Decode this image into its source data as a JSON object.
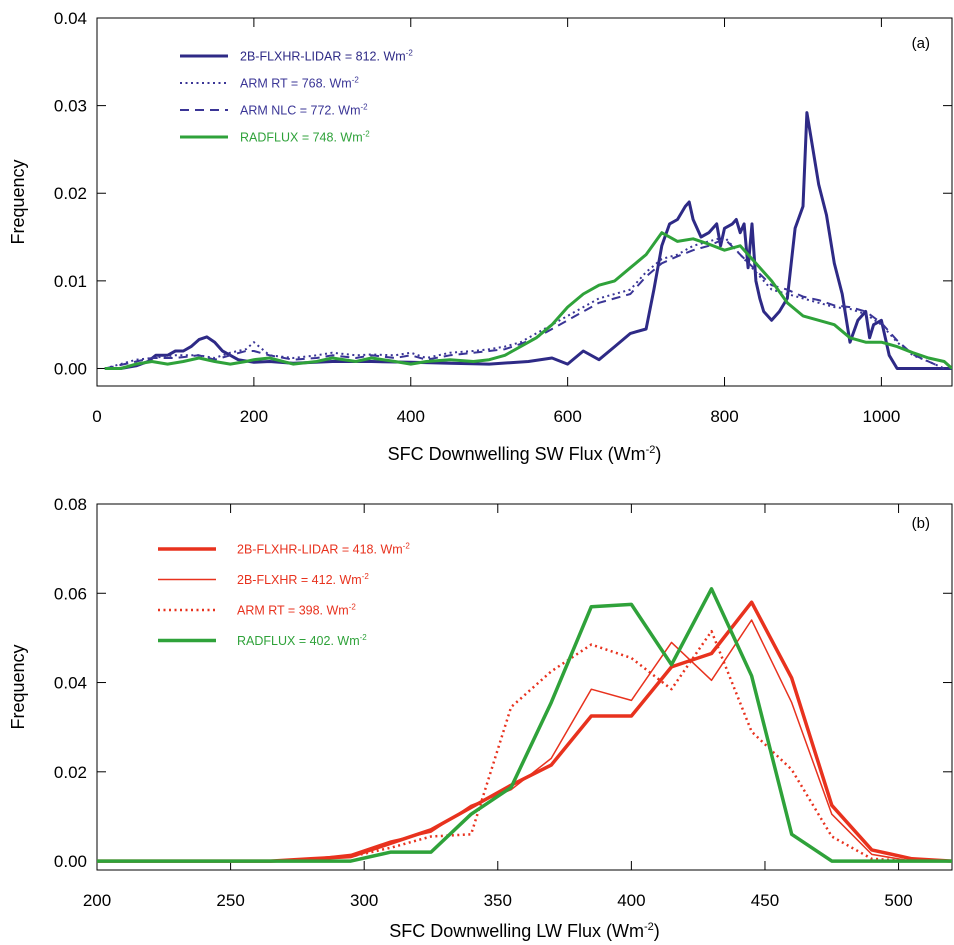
{
  "chart_data": [
    {
      "type": "line",
      "panel_label": "(a)",
      "xlabel": "SFC Downwelling SW Flux (Wm",
      "xlabel_sup": "-2",
      "xlabel_end": ")",
      "ylabel": "Frequency",
      "xlim": [
        0,
        1090
      ],
      "ylim": [
        -0.002,
        0.04
      ],
      "xticks": [
        "0",
        "200",
        "400",
        "600",
        "800",
        "1000"
      ],
      "xtick_values": [
        0,
        200,
        400,
        600,
        800,
        1000
      ],
      "yticks": [
        "0.00",
        "0.01",
        "0.02",
        "0.03",
        "0.04"
      ],
      "ytick_values": [
        0,
        0.01,
        0.02,
        0.03,
        0.04
      ],
      "legend_position": "top-left",
      "series": [
        {
          "name": "2B-FLXHR-LIDAR",
          "legend_value": " = 812. Wm",
          "color": "#2e2a86",
          "style": "solid",
          "width": 3,
          "x": [
            10,
            30,
            50,
            65,
            75,
            90,
            100,
            110,
            120,
            130,
            140,
            150,
            160,
            170,
            180,
            200,
            220,
            250,
            300,
            350,
            400,
            450,
            500,
            550,
            580,
            600,
            620,
            640,
            660,
            680,
            700,
            710,
            720,
            730,
            740,
            750,
            755,
            760,
            770,
            780,
            790,
            795,
            800,
            810,
            815,
            820,
            825,
            830,
            835,
            840,
            845,
            850,
            860,
            870,
            880,
            890,
            900,
            905,
            910,
            920,
            930,
            940,
            950,
            960,
            970,
            980,
            985,
            990,
            1000,
            1010,
            1020,
            1040,
            1090
          ],
          "y": [
            0.0,
            0.0,
            0.0003,
            0.0008,
            0.0015,
            0.0015,
            0.002,
            0.002,
            0.0025,
            0.0033,
            0.0036,
            0.003,
            0.002,
            0.0015,
            0.001,
            0.0007,
            0.0008,
            0.0006,
            0.0008,
            0.0008,
            0.0007,
            0.0006,
            0.0005,
            0.0008,
            0.0012,
            0.0005,
            0.002,
            0.001,
            0.0025,
            0.004,
            0.0045,
            0.009,
            0.014,
            0.0165,
            0.017,
            0.0185,
            0.019,
            0.017,
            0.015,
            0.0155,
            0.0165,
            0.014,
            0.016,
            0.0165,
            0.017,
            0.0155,
            0.0165,
            0.0115,
            0.0165,
            0.01,
            0.008,
            0.0065,
            0.0055,
            0.0065,
            0.008,
            0.016,
            0.0185,
            0.0292,
            0.0265,
            0.021,
            0.0175,
            0.012,
            0.0085,
            0.003,
            0.0055,
            0.0065,
            0.0035,
            0.005,
            0.0055,
            0.0015,
            0.0,
            0.0,
            0.0
          ]
        },
        {
          "name": "ARM RT",
          "legend_value": " = 768. Wm",
          "color": "#3a3596",
          "style": "dotted",
          "width": 2,
          "x": [
            10,
            30,
            50,
            70,
            100,
            130,
            150,
            170,
            190,
            200,
            220,
            250,
            280,
            300,
            330,
            350,
            380,
            400,
            420,
            450,
            480,
            500,
            520,
            540,
            560,
            580,
            600,
            620,
            640,
            660,
            680,
            700,
            720,
            740,
            760,
            780,
            800,
            820,
            840,
            860,
            880,
            900,
            920,
            940,
            960,
            980,
            1000,
            1020,
            1040,
            1060,
            1080
          ],
          "y": [
            0.0,
            0.0005,
            0.001,
            0.0012,
            0.0015,
            0.0015,
            0.0012,
            0.0018,
            0.0022,
            0.003,
            0.0015,
            0.0012,
            0.0015,
            0.0018,
            0.0015,
            0.0016,
            0.0015,
            0.0018,
            0.0012,
            0.0018,
            0.002,
            0.0022,
            0.0025,
            0.003,
            0.004,
            0.005,
            0.006,
            0.007,
            0.008,
            0.0085,
            0.009,
            0.011,
            0.0125,
            0.013,
            0.014,
            0.0145,
            0.015,
            0.013,
            0.011,
            0.009,
            0.0085,
            0.008,
            0.0075,
            0.007,
            0.0068,
            0.0062,
            0.005,
            0.003,
            0.0015,
            0.0008,
            0.0
          ]
        },
        {
          "name": "ARM NLC",
          "legend_value": " = 772. Wm",
          "color": "#3a3596",
          "style": "dashed",
          "width": 2,
          "x": [
            10,
            30,
            50,
            70,
            100,
            130,
            150,
            170,
            190,
            200,
            220,
            250,
            280,
            300,
            330,
            350,
            380,
            400,
            420,
            450,
            480,
            500,
            520,
            540,
            560,
            580,
            600,
            620,
            640,
            660,
            680,
            700,
            720,
            740,
            760,
            780,
            800,
            820,
            840,
            860,
            880,
            900,
            920,
            940,
            960,
            980,
            1000,
            1020,
            1040,
            1060,
            1080
          ],
          "y": [
            0.0,
            0.0004,
            0.0008,
            0.0012,
            0.0012,
            0.0015,
            0.001,
            0.0015,
            0.002,
            0.002,
            0.0015,
            0.001,
            0.0012,
            0.0015,
            0.0012,
            0.0015,
            0.0012,
            0.0015,
            0.001,
            0.0015,
            0.0018,
            0.002,
            0.0022,
            0.0028,
            0.0035,
            0.0045,
            0.0055,
            0.0065,
            0.0075,
            0.008,
            0.0085,
            0.0105,
            0.012,
            0.0128,
            0.0135,
            0.014,
            0.0148,
            0.013,
            0.0112,
            0.0095,
            0.009,
            0.0082,
            0.0078,
            0.0072,
            0.007,
            0.0065,
            0.0052,
            0.0032,
            0.0016,
            0.0008,
            0.0
          ]
        },
        {
          "name": "RADFLUX",
          "legend_value": " = 748. Wm",
          "color": "#2fa23a",
          "style": "solid",
          "width": 3,
          "x": [
            10,
            30,
            50,
            70,
            90,
            110,
            130,
            150,
            170,
            190,
            200,
            220,
            250,
            280,
            300,
            330,
            350,
            380,
            400,
            420,
            450,
            480,
            500,
            520,
            540,
            560,
            580,
            600,
            620,
            640,
            660,
            680,
            700,
            720,
            740,
            760,
            780,
            800,
            820,
            840,
            860,
            880,
            900,
            920,
            940,
            960,
            980,
            1000,
            1020,
            1040,
            1060,
            1080,
            1090
          ],
          "y": [
            0.0,
            0.0,
            0.0005,
            0.0008,
            0.0005,
            0.0008,
            0.0012,
            0.0008,
            0.0005,
            0.0008,
            0.001,
            0.0012,
            0.0005,
            0.0008,
            0.0012,
            0.0008,
            0.0012,
            0.0008,
            0.0005,
            0.0008,
            0.001,
            0.0008,
            0.001,
            0.0015,
            0.0025,
            0.0035,
            0.005,
            0.007,
            0.0085,
            0.0095,
            0.01,
            0.0115,
            0.013,
            0.0155,
            0.0145,
            0.0148,
            0.0142,
            0.0135,
            0.014,
            0.012,
            0.01,
            0.0075,
            0.006,
            0.0055,
            0.005,
            0.0035,
            0.003,
            0.003,
            0.0025,
            0.0018,
            0.0012,
            0.0008,
            0.0
          ]
        }
      ]
    },
    {
      "type": "line",
      "panel_label": "(b)",
      "xlabel": "SFC Downwelling LW Flux (Wm",
      "xlabel_sup": "-2",
      "xlabel_end": ")",
      "ylabel": "Frequency",
      "xlim": [
        200,
        520
      ],
      "ylim": [
        -0.002,
        0.08
      ],
      "xticks": [
        "200",
        "250",
        "300",
        "350",
        "400",
        "450",
        "500"
      ],
      "xtick_values": [
        200,
        250,
        300,
        350,
        400,
        450,
        500
      ],
      "yticks": [
        "0.00",
        "0.02",
        "0.04",
        "0.06",
        "0.08"
      ],
      "ytick_values": [
        0,
        0.02,
        0.04,
        0.06,
        0.08
      ],
      "legend_position": "top-left",
      "series": [
        {
          "name": "2B-FLXHR-LIDAR",
          "legend_value": " = 418. Wm",
          "color": "#e8321e",
          "style": "solid",
          "width": 3.5,
          "x": [
            200,
            265,
            280,
            295,
            310,
            325,
            340,
            355,
            370,
            385,
            400,
            415,
            430,
            445,
            460,
            475,
            490,
            505,
            520
          ],
          "y": [
            0.0,
            0.0,
            0.0005,
            0.001,
            0.004,
            0.007,
            0.012,
            0.017,
            0.0215,
            0.0325,
            0.0325,
            0.0435,
            0.0465,
            0.058,
            0.041,
            0.0125,
            0.0025,
            0.0005,
            0.0
          ]
        },
        {
          "name": "2B-FLXHR",
          "legend_value": " = 412. Wm",
          "color": "#e8321e",
          "style": "solid",
          "width": 1.5,
          "x": [
            200,
            265,
            280,
            295,
            310,
            325,
            340,
            355,
            370,
            385,
            400,
            415,
            430,
            445,
            460,
            475,
            490,
            505,
            520
          ],
          "y": [
            0.0,
            0.0,
            0.0005,
            0.0015,
            0.0045,
            0.0065,
            0.0125,
            0.016,
            0.023,
            0.0385,
            0.036,
            0.049,
            0.0405,
            0.054,
            0.0355,
            0.0105,
            0.0015,
            0.0,
            0.0
          ]
        },
        {
          "name": "ARM RT",
          "legend_value": " = 398. Wm",
          "color": "#e8321e",
          "style": "dotted",
          "width": 2.5,
          "x": [
            200,
            265,
            280,
            295,
            310,
            325,
            340,
            355,
            370,
            385,
            400,
            415,
            430,
            445,
            460,
            475,
            490,
            505,
            520
          ],
          "y": [
            0.0,
            0.0,
            0.0005,
            0.001,
            0.003,
            0.0055,
            0.006,
            0.0345,
            0.0425,
            0.0485,
            0.0455,
            0.0385,
            0.0515,
            0.029,
            0.0205,
            0.0055,
            0.0005,
            0.0,
            0.0
          ]
        },
        {
          "name": "RADFLUX",
          "legend_value": " = 402. Wm",
          "color": "#2fa23a",
          "style": "solid",
          "width": 3.5,
          "x": [
            200,
            280,
            295,
            310,
            325,
            340,
            355,
            370,
            385,
            400,
            415,
            430,
            445,
            460,
            475,
            490,
            505,
            520
          ],
          "y": [
            0.0,
            0.0,
            0.0,
            0.002,
            0.002,
            0.0105,
            0.0165,
            0.0355,
            0.057,
            0.0575,
            0.044,
            0.061,
            0.0415,
            0.006,
            0.0,
            0.0,
            0.0,
            0.0
          ]
        }
      ]
    }
  ]
}
